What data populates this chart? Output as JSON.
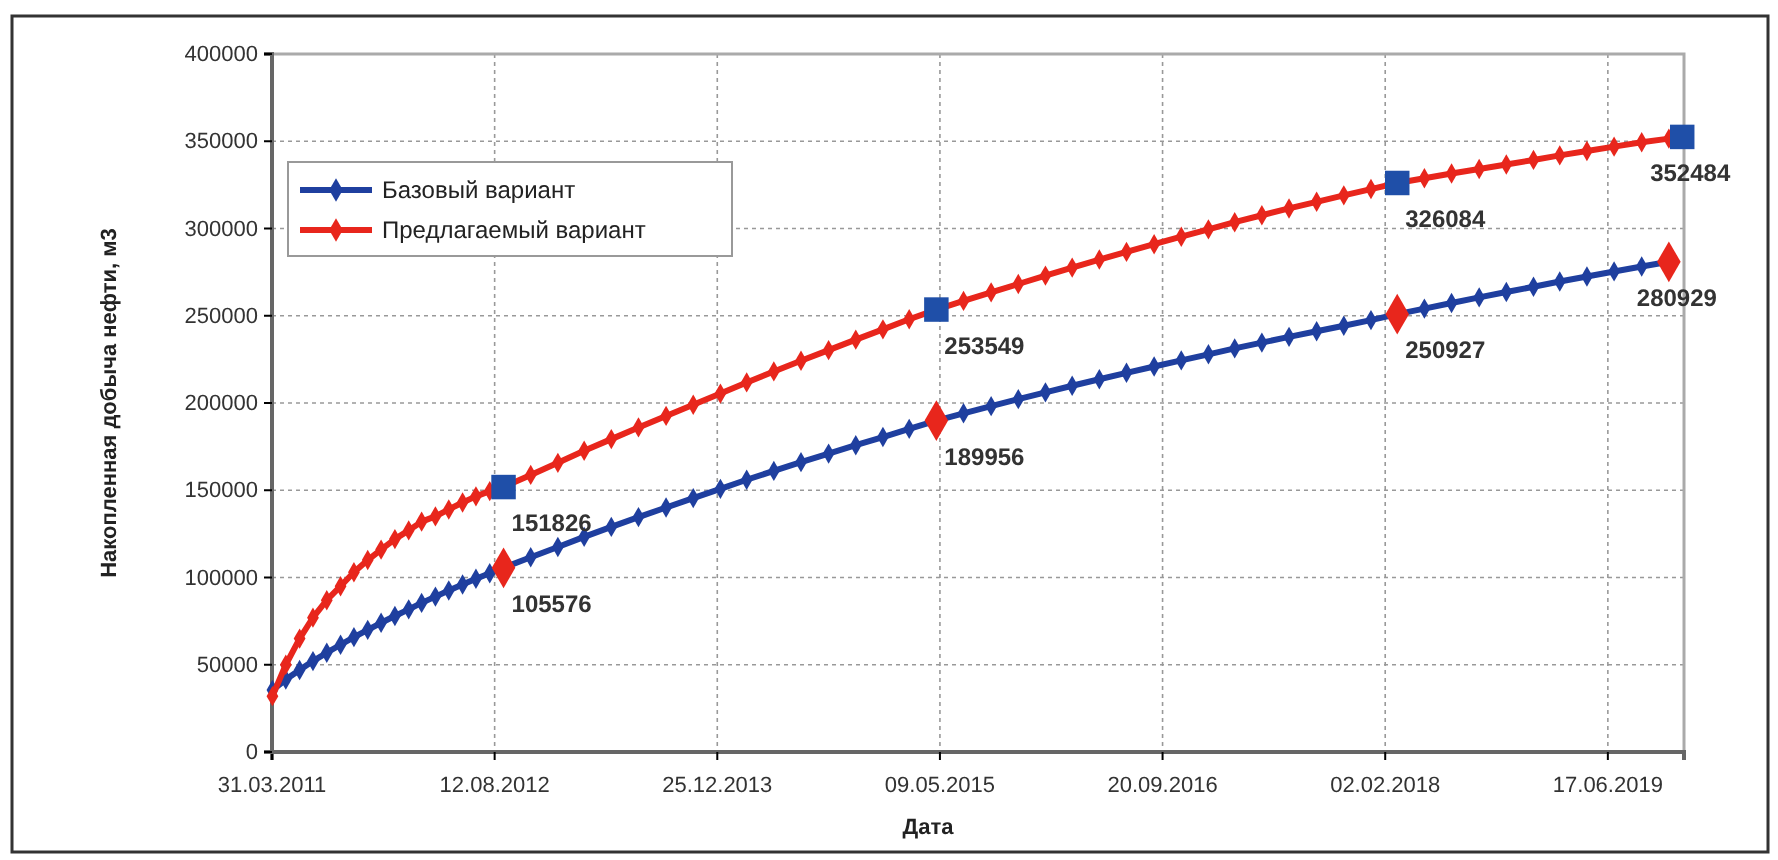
{
  "chart_data": {
    "type": "line",
    "xlabel": "Дата",
    "ylabel": "Накопленная добыча нефти, м3",
    "xlim": [
      "2011-03-31",
      "2019-12-05"
    ],
    "xticks": [
      {
        "value": "2011-03-31",
        "label": "31.03.2011"
      },
      {
        "value": "2012-08-12",
        "label": "12.08.2012"
      },
      {
        "value": "2013-12-25",
        "label": "25.12.2013"
      },
      {
        "value": "2015-05-09",
        "label": "09.05.2015"
      },
      {
        "value": "2016-09-20",
        "label": "20.09.2016"
      },
      {
        "value": "2018-02-02",
        "label": "02.02.2018"
      },
      {
        "value": "2019-06-17",
        "label": "17.06.2019"
      }
    ],
    "ylim": [
      0,
      400000
    ],
    "yticks": [
      0,
      50000,
      100000,
      150000,
      200000,
      250000,
      300000,
      350000,
      400000
    ],
    "grid": true,
    "legend": "top left",
    "marker": "diamond",
    "line_style": "solid",
    "series": [
      {
        "name": "Базовый вариант",
        "color": "#1f3f9f",
        "x": [
          "2011-04",
          "2011-05",
          "2011-06",
          "2011-07",
          "2011-08",
          "2011-09",
          "2011-10",
          "2011-11",
          "2011-12",
          "2012-01",
          "2012-02",
          "2012-03",
          "2012-04",
          "2012-05",
          "2012-06",
          "2012-07",
          "2012-08",
          "2012-09",
          "2012-11",
          "2013-01",
          "2013-03",
          "2013-05",
          "2013-07",
          "2013-09",
          "2013-11",
          "2014-01",
          "2014-03",
          "2014-05",
          "2014-07",
          "2014-09",
          "2014-11",
          "2015-01",
          "2015-03",
          "2015-05",
          "2015-07",
          "2015-09",
          "2015-11",
          "2016-01",
          "2016-03",
          "2016-05",
          "2016-07",
          "2016-09",
          "2016-11",
          "2017-01",
          "2017-03",
          "2017-05",
          "2017-07",
          "2017-09",
          "2017-11",
          "2018-01",
          "2018-03",
          "2018-05",
          "2018-07",
          "2018-09",
          "2018-11",
          "2019-01",
          "2019-03",
          "2019-05",
          "2019-07",
          "2019-09",
          "2019-11"
        ],
        "values": [
          35500,
          41500,
          47000,
          52100,
          56900,
          61450,
          65800,
          70000,
          74050,
          77950,
          81750,
          85450,
          89050,
          92550,
          95950,
          99250,
          102450,
          105576,
          111600,
          117500,
          123300,
          129000,
          134600,
          140100,
          145500,
          150800,
          156000,
          161100,
          166100,
          171000,
          175800,
          180500,
          185200,
          189956,
          194100,
          198200,
          202200,
          206100,
          209900,
          213600,
          217300,
          220900,
          224400,
          227900,
          231300,
          234600,
          237900,
          241100,
          244300,
          247500,
          250927,
          254100,
          257300,
          260500,
          263600,
          266600,
          269600,
          272500,
          275400,
          278200,
          280929
        ]
      },
      {
        "name": "Предлагаемый вариант",
        "color": "#e8261c",
        "x": [
          "2011-04",
          "2011-05",
          "2011-06",
          "2011-07",
          "2011-08",
          "2011-09",
          "2011-10",
          "2011-11",
          "2011-12",
          "2012-01",
          "2012-02",
          "2012-03",
          "2012-04",
          "2012-05",
          "2012-06",
          "2012-07",
          "2012-08",
          "2012-09",
          "2012-11",
          "2013-01",
          "2013-03",
          "2013-05",
          "2013-07",
          "2013-09",
          "2013-11",
          "2014-01",
          "2014-03",
          "2014-05",
          "2014-07",
          "2014-09",
          "2014-11",
          "2015-01",
          "2015-03",
          "2015-05",
          "2015-07",
          "2015-09",
          "2015-11",
          "2016-01",
          "2016-03",
          "2016-05",
          "2016-07",
          "2016-09",
          "2016-11",
          "2017-01",
          "2017-03",
          "2017-05",
          "2017-07",
          "2017-09",
          "2017-11",
          "2018-01",
          "2018-03",
          "2018-05",
          "2018-07",
          "2018-09",
          "2018-11",
          "2019-01",
          "2019-03",
          "2019-05",
          "2019-07",
          "2019-09",
          "2019-11",
          "2019-12"
        ],
        "values": [
          32000,
          50000,
          65000,
          77000,
          87000,
          95000,
          103000,
          110000,
          116000,
          122000,
          127000,
          132000,
          135000,
          139000,
          143000,
          146500,
          149500,
          151826,
          158800,
          165700,
          172600,
          179300,
          186000,
          192600,
          199000,
          205400,
          211800,
          218100,
          224200,
          230300,
          236300,
          242200,
          248000,
          253549,
          258500,
          263400,
          268200,
          273000,
          277600,
          282200,
          286600,
          291000,
          295300,
          299500,
          303600,
          307600,
          311500,
          315300,
          319000,
          322600,
          326084,
          328800,
          331500,
          334100,
          336700,
          339300,
          341900,
          344400,
          346900,
          349400,
          351500,
          352484
        ]
      },
      {
        "type": "scatter",
        "color": "#1f4fa8",
        "marker": "square",
        "x": [
          "2012-09",
          "2015-05",
          "2018-03",
          "2019-12"
        ],
        "values": [
          151826,
          253549,
          326084,
          352484
        ],
        "value_labels": [
          "151826",
          "253549",
          "326084",
          "352484"
        ]
      },
      {
        "type": "scatter",
        "color": "#e8261c",
        "marker": "diamond",
        "x": [
          "2012-09",
          "2015-05",
          "2018-03",
          "2019-11"
        ],
        "values": [
          105576,
          189956,
          250927,
          280929
        ],
        "value_labels": [
          "105576",
          "189956",
          "250927",
          "280929"
        ]
      }
    ]
  }
}
